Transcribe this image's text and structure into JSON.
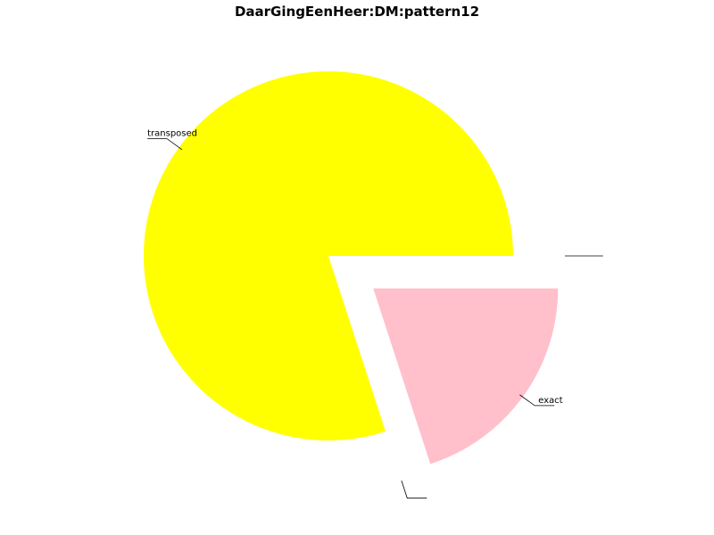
{
  "chart_data": {
    "type": "pie",
    "title": "DaarGingEenHeer:DM:pattern12",
    "slices": [
      {
        "label": "transposed",
        "value": 80,
        "color": "#ffff00",
        "exploded": false
      },
      {
        "label": "",
        "value": 0,
        "color": "#ffffff",
        "exploded": true
      },
      {
        "label": "exact",
        "value": 20,
        "color": "#ffc0cb",
        "exploded": true
      },
      {
        "label": "",
        "value": 0,
        "color": "#ffffff",
        "exploded": true
      }
    ]
  }
}
